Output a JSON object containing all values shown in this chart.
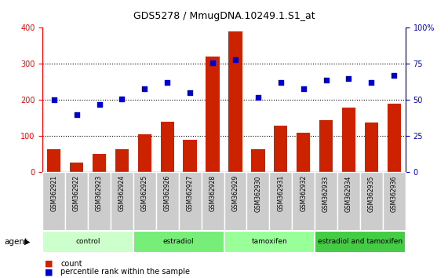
{
  "title": "GDS5278 / MmugDNA.10249.1.S1_at",
  "samples": [
    "GSM362921",
    "GSM362922",
    "GSM362923",
    "GSM362924",
    "GSM362925",
    "GSM362926",
    "GSM362927",
    "GSM362928",
    "GSM362929",
    "GSM362930",
    "GSM362931",
    "GSM362932",
    "GSM362933",
    "GSM362934",
    "GSM362935",
    "GSM362936"
  ],
  "counts": [
    65,
    28,
    52,
    65,
    105,
    140,
    90,
    320,
    390,
    65,
    130,
    110,
    145,
    180,
    137,
    190
  ],
  "percentile": [
    50,
    40,
    47,
    51,
    58,
    62,
    55,
    76,
    78,
    52,
    62,
    58,
    64,
    65,
    62,
    67
  ],
  "bar_color": "#cc2200",
  "dot_color": "#0000cc",
  "groups": [
    {
      "label": "control",
      "start": 0,
      "end": 4,
      "color": "#ccffcc"
    },
    {
      "label": "estradiol",
      "start": 4,
      "end": 8,
      "color": "#77ee77"
    },
    {
      "label": "tamoxifen",
      "start": 8,
      "end": 12,
      "color": "#99ff99"
    },
    {
      "label": "estradiol and tamoxifen",
      "start": 12,
      "end": 16,
      "color": "#44cc44"
    }
  ],
  "ylim_left": [
    0,
    400
  ],
  "ylim_right": [
    0,
    100
  ],
  "yticks_left": [
    0,
    100,
    200,
    300,
    400
  ],
  "yticks_right": [
    0,
    25,
    50,
    75,
    100
  ],
  "ytick_labels_right": [
    "0",
    "25",
    "50",
    "75",
    "100%"
  ],
  "agent_label": "agent",
  "legend_count": "count",
  "legend_percentile": "percentile rank within the sample",
  "background_color": "#ffffff",
  "plot_bg_color": "#ffffff",
  "grid_color": "#000000",
  "sample_box_color": "#cccccc"
}
